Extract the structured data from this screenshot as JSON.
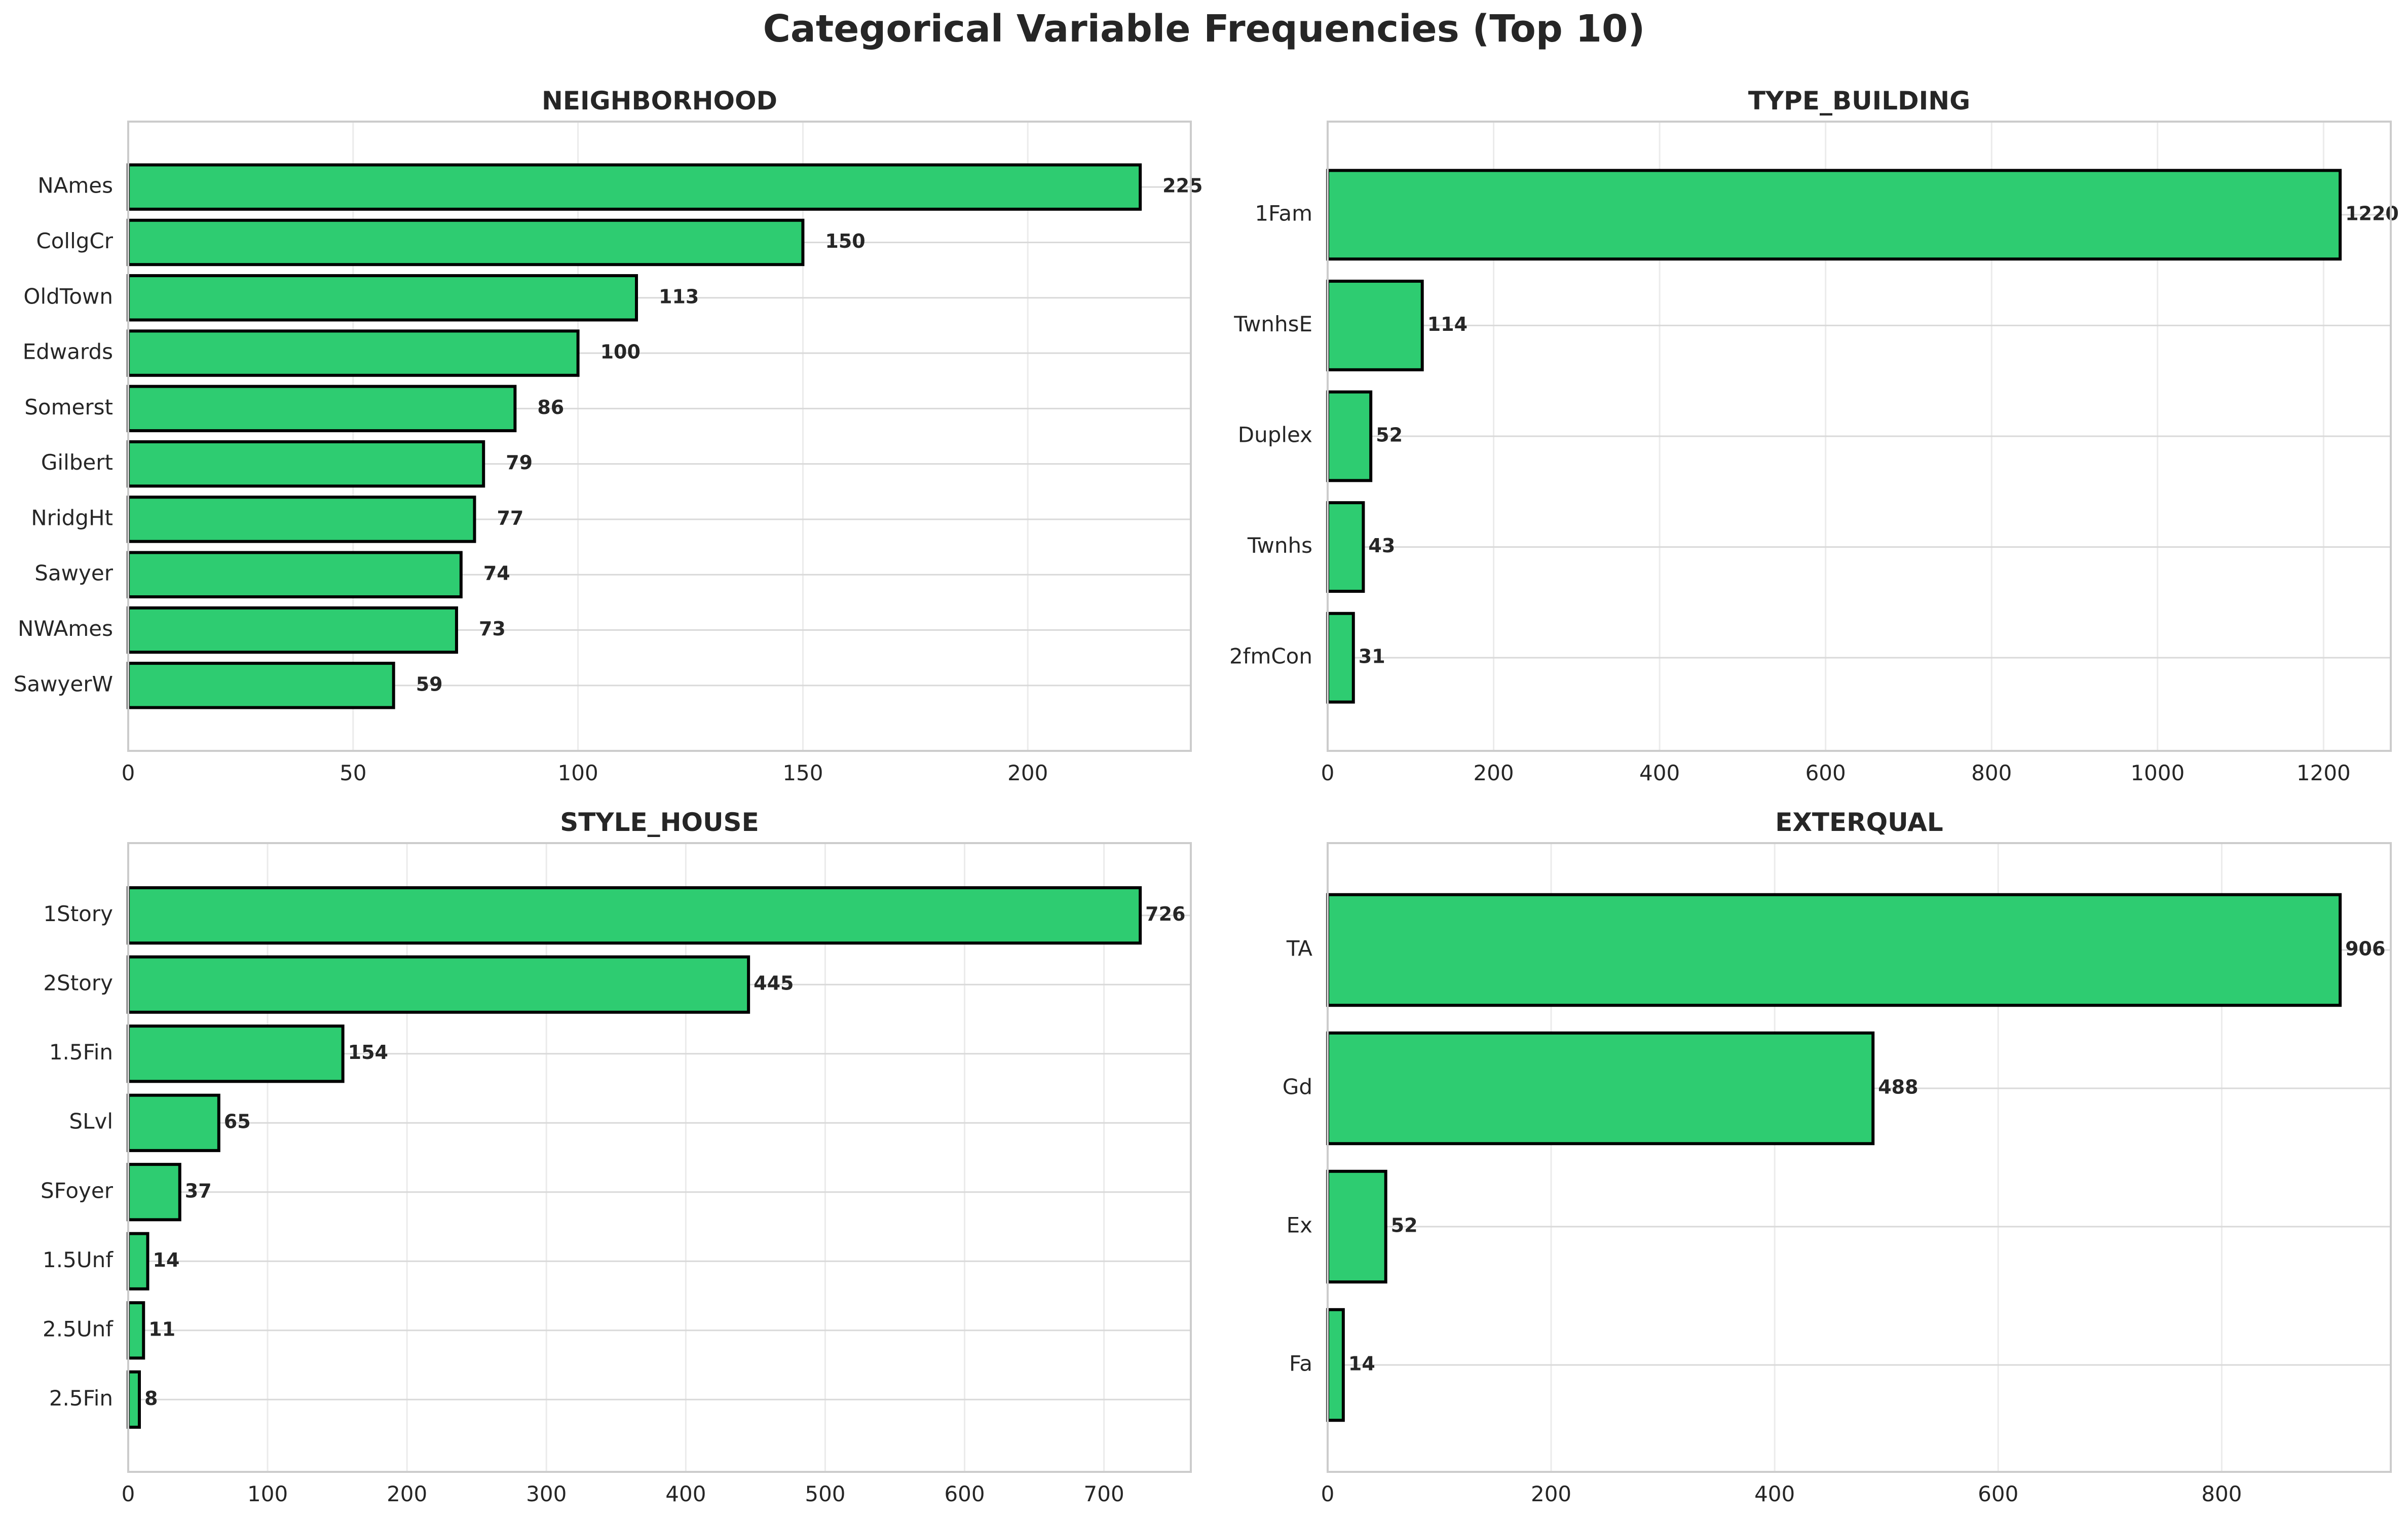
{
  "figure_title": "Categorical Variable Frequencies (Top 10)",
  "colors": {
    "bar_fill": "#2ecc71",
    "bar_edge": "#000000",
    "grid": "#d9d9d9",
    "spine": "#cccccc",
    "text": "#262626"
  },
  "chart_data": [
    {
      "type": "bar",
      "orientation": "horizontal",
      "title": "NEIGHBORHOOD",
      "categories": [
        "NAmes",
        "CollgCr",
        "OldTown",
        "Edwards",
        "Somerst",
        "Gilbert",
        "NridgHt",
        "Sawyer",
        "NWAmes",
        "SawyerW"
      ],
      "values": [
        225,
        150,
        113,
        100,
        86,
        79,
        77,
        74,
        73,
        59
      ],
      "xlim": [
        0,
        236.25
      ],
      "xticks": [
        0,
        50,
        100,
        150,
        200
      ],
      "grid": true,
      "data_labels": [
        "225",
        "150",
        "113",
        "100",
        "86",
        "79",
        "77",
        "74",
        "73",
        "59"
      ]
    },
    {
      "type": "bar",
      "orientation": "horizontal",
      "title": "TYPE_BUILDING",
      "categories": [
        "1Fam",
        "TwnhsE",
        "Duplex",
        "Twnhs",
        "2fmCon"
      ],
      "values": [
        1220,
        114,
        52,
        43,
        31
      ],
      "xlim": [
        0,
        1281
      ],
      "xticks": [
        0,
        200,
        400,
        600,
        800,
        1000,
        1200
      ],
      "grid": true,
      "data_labels": [
        "1220",
        "114",
        "52",
        "43",
        "31"
      ]
    },
    {
      "type": "bar",
      "orientation": "horizontal",
      "title": "STYLE_HOUSE",
      "categories": [
        "1Story",
        "2Story",
        "1.5Fin",
        "SLvl",
        "SFoyer",
        "1.5Unf",
        "2.5Unf",
        "2.5Fin"
      ],
      "values": [
        726,
        445,
        154,
        65,
        37,
        14,
        11,
        8
      ],
      "xlim": [
        0,
        762.3
      ],
      "xticks": [
        0,
        100,
        200,
        300,
        400,
        500,
        600,
        700
      ],
      "grid": true,
      "data_labels": [
        "726",
        "445",
        "154",
        "65",
        "37",
        "14",
        "11",
        "8"
      ]
    },
    {
      "type": "bar",
      "orientation": "horizontal",
      "title": "EXTERQUAL",
      "categories": [
        "TA",
        "Gd",
        "Ex",
        "Fa"
      ],
      "values": [
        906,
        488,
        52,
        14
      ],
      "xlim": [
        0,
        951.3
      ],
      "xticks": [
        0,
        200,
        400,
        600,
        800
      ],
      "grid": true,
      "data_labels": [
        "906",
        "488",
        "52",
        "14"
      ]
    }
  ]
}
